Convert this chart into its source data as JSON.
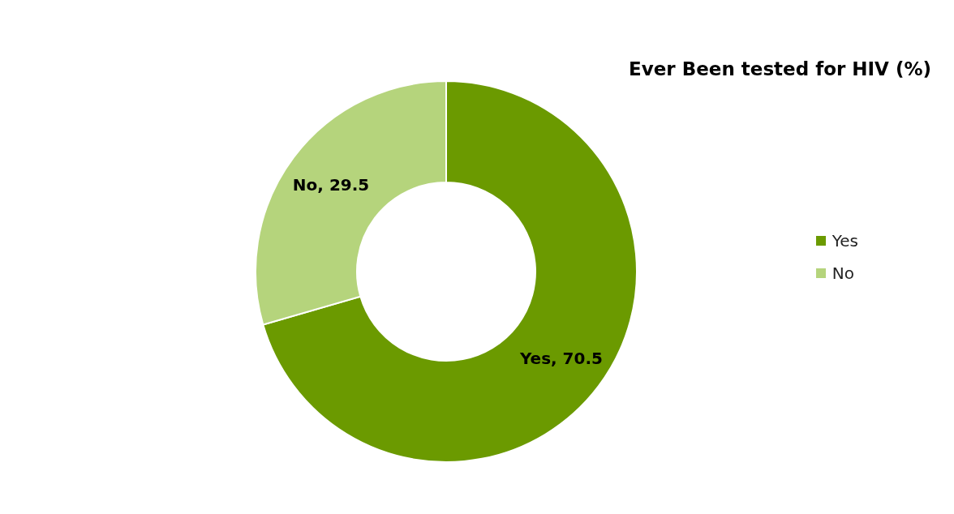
{
  "chart_data": {
    "type": "donut",
    "title": "Ever Been tested for HIV (%)",
    "categories": [
      "Yes",
      "No"
    ],
    "values": [
      70.5,
      29.5
    ],
    "colors": [
      "#6b9a00",
      "#b5d47c"
    ],
    "value_labels": [
      "Yes, 70.5",
      "No, 29.5"
    ],
    "legend": "right"
  }
}
